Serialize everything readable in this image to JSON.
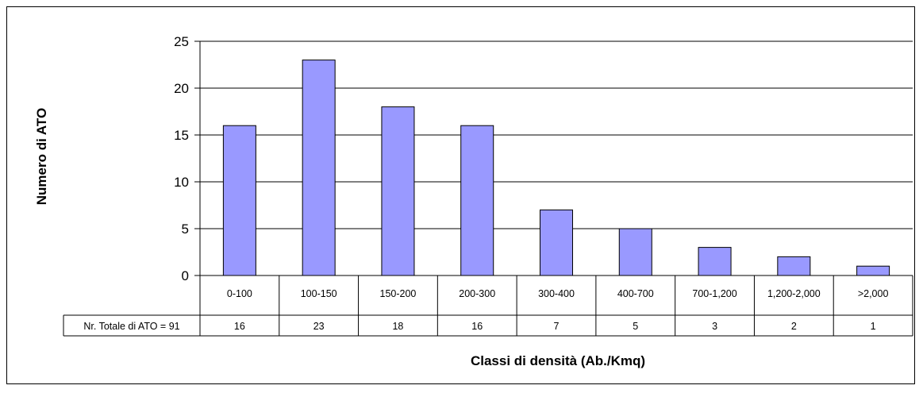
{
  "chart_data": {
    "type": "bar",
    "categories": [
      "0-100",
      "100-150",
      "150-200",
      "200-300",
      "300-400",
      "400-700",
      "700-1,200",
      "1,200-2,000",
      ">2,000"
    ],
    "values": [
      16,
      23,
      18,
      16,
      7,
      5,
      3,
      2,
      1
    ],
    "xlabel": "Classi di densità (Ab./Kmq)",
    "ylabel": "Numero di ATO",
    "ylim": [
      0,
      25
    ],
    "yticks": [
      0,
      5,
      10,
      15,
      20,
      25
    ],
    "grid": true,
    "legend": "none",
    "bar_color": "#9999ff",
    "table": {
      "row_label": "Nr. Totale di ATO = 91",
      "values": [
        "16",
        "23",
        "18",
        "16",
        "7",
        "5",
        "3",
        "2",
        "1"
      ]
    }
  }
}
